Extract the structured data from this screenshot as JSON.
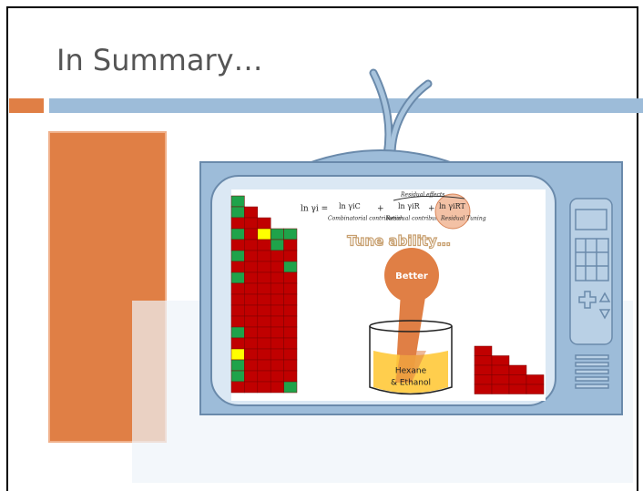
{
  "slide": {
    "title": "In Summary…",
    "equation": {
      "lhs": "ln γi =",
      "term1": "ln γiC",
      "term1_note": "Combinatorial contribution",
      "plus1": "+",
      "term2": "ln γiR",
      "term2_note": "Residual contribution",
      "plus2": "+",
      "term3": "ln γiRT",
      "term3_note": "Residual Tuning",
      "brace_note": "Residual effects"
    },
    "tagline": "Tune ability…",
    "bubble": "Better",
    "beaker": [
      "Hexane",
      "& Ethanol"
    ]
  }
}
